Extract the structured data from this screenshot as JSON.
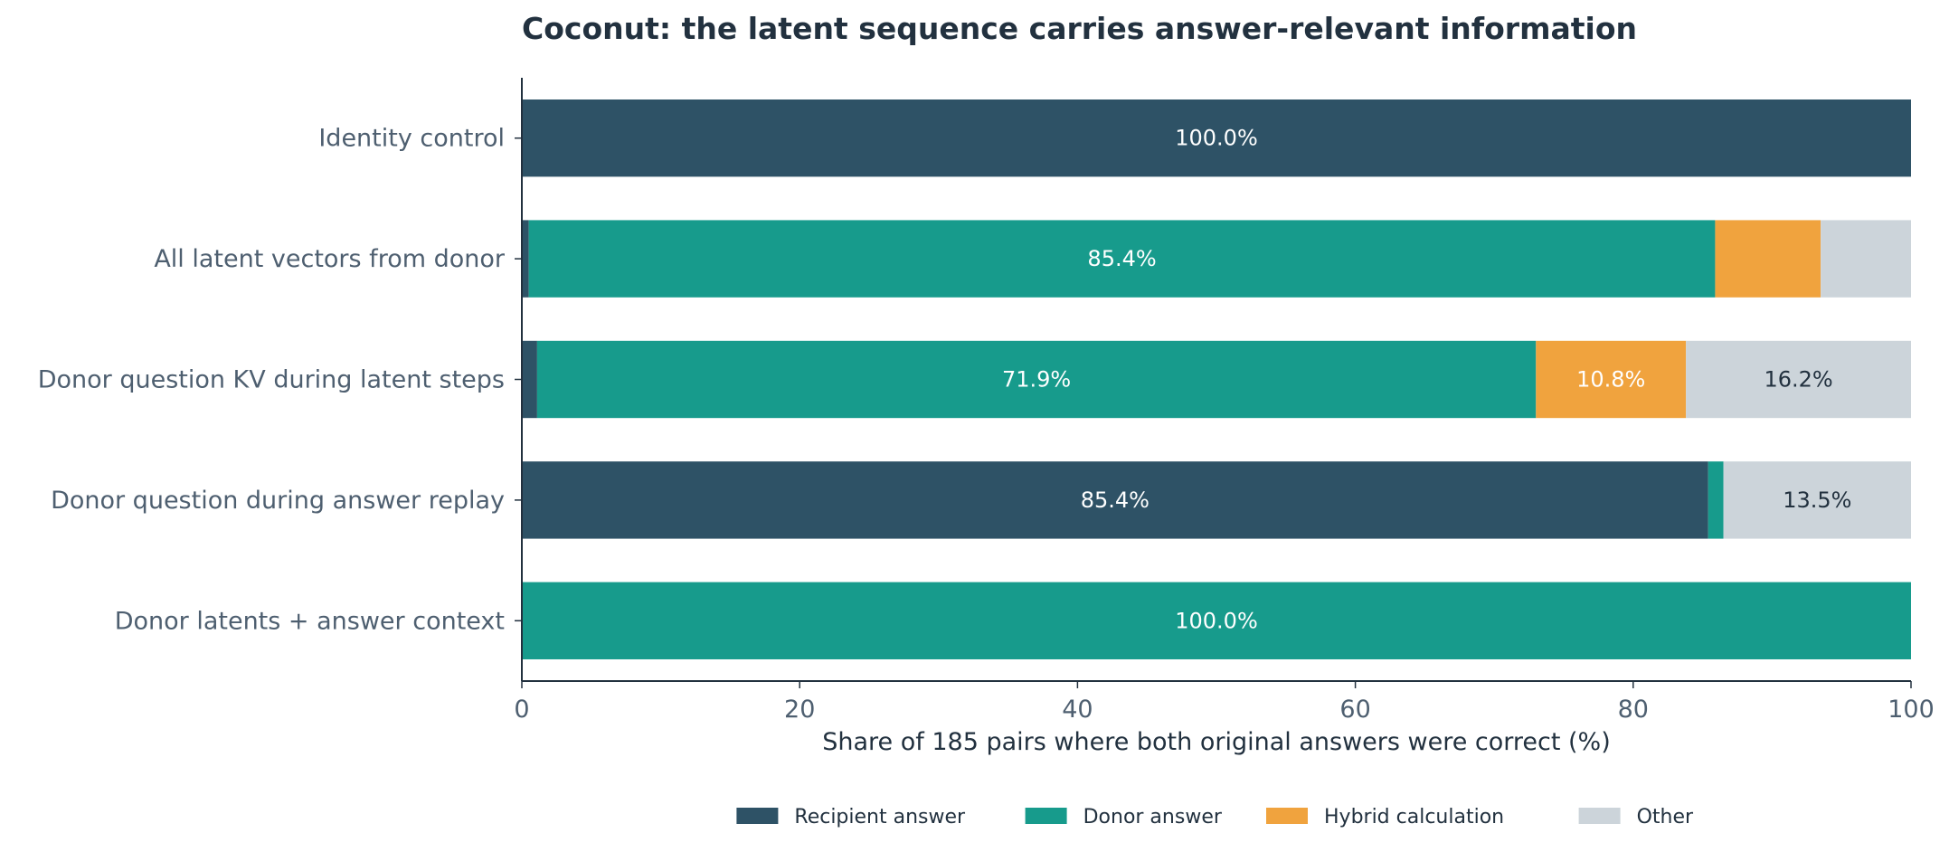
{
  "chart_data": {
    "type": "bar",
    "orientation": "horizontal",
    "stacked": true,
    "title": "Coconut: the latent sequence carries answer-relevant information",
    "xlabel": "Share of 185 pairs where both original answers were correct (%)",
    "xlim": [
      0,
      100
    ],
    "xticks": [
      "0",
      "20",
      "40",
      "60",
      "80",
      "100"
    ],
    "categories": [
      "Identity control",
      "All latent vectors from donor",
      "Donor question KV during latent steps",
      "Donor question during answer replay",
      "Donor latents + answer context"
    ],
    "series": [
      {
        "name": "Recipient answer",
        "color": "#2e5266",
        "text_color": "#ffffff",
        "values": [
          100.0,
          0.5,
          1.1,
          85.4,
          0.0
        ],
        "labels": [
          "100.0%",
          "",
          "",
          "85.4%",
          ""
        ]
      },
      {
        "name": "Donor answer",
        "color": "#179b8c",
        "text_color": "#ffffff",
        "values": [
          0.0,
          85.4,
          71.9,
          1.1,
          100.0
        ],
        "labels": [
          "",
          "85.4%",
          "71.9%",
          "",
          "100.0%"
        ]
      },
      {
        "name": "Hybrid calculation",
        "color": "#f0a33e",
        "text_color": "#ffffff",
        "values": [
          0.0,
          7.6,
          10.8,
          0.0,
          0.0
        ],
        "labels": [
          "",
          "",
          "10.8%",
          "",
          ""
        ]
      },
      {
        "name": "Other",
        "color": "#ccd4da",
        "text_color": "#22313f",
        "values": [
          0.0,
          6.5,
          16.2,
          13.5,
          0.0
        ],
        "labels": [
          "",
          "",
          "16.2%",
          "13.5%",
          ""
        ]
      }
    ],
    "grid": false,
    "legend_position": "bottom"
  }
}
